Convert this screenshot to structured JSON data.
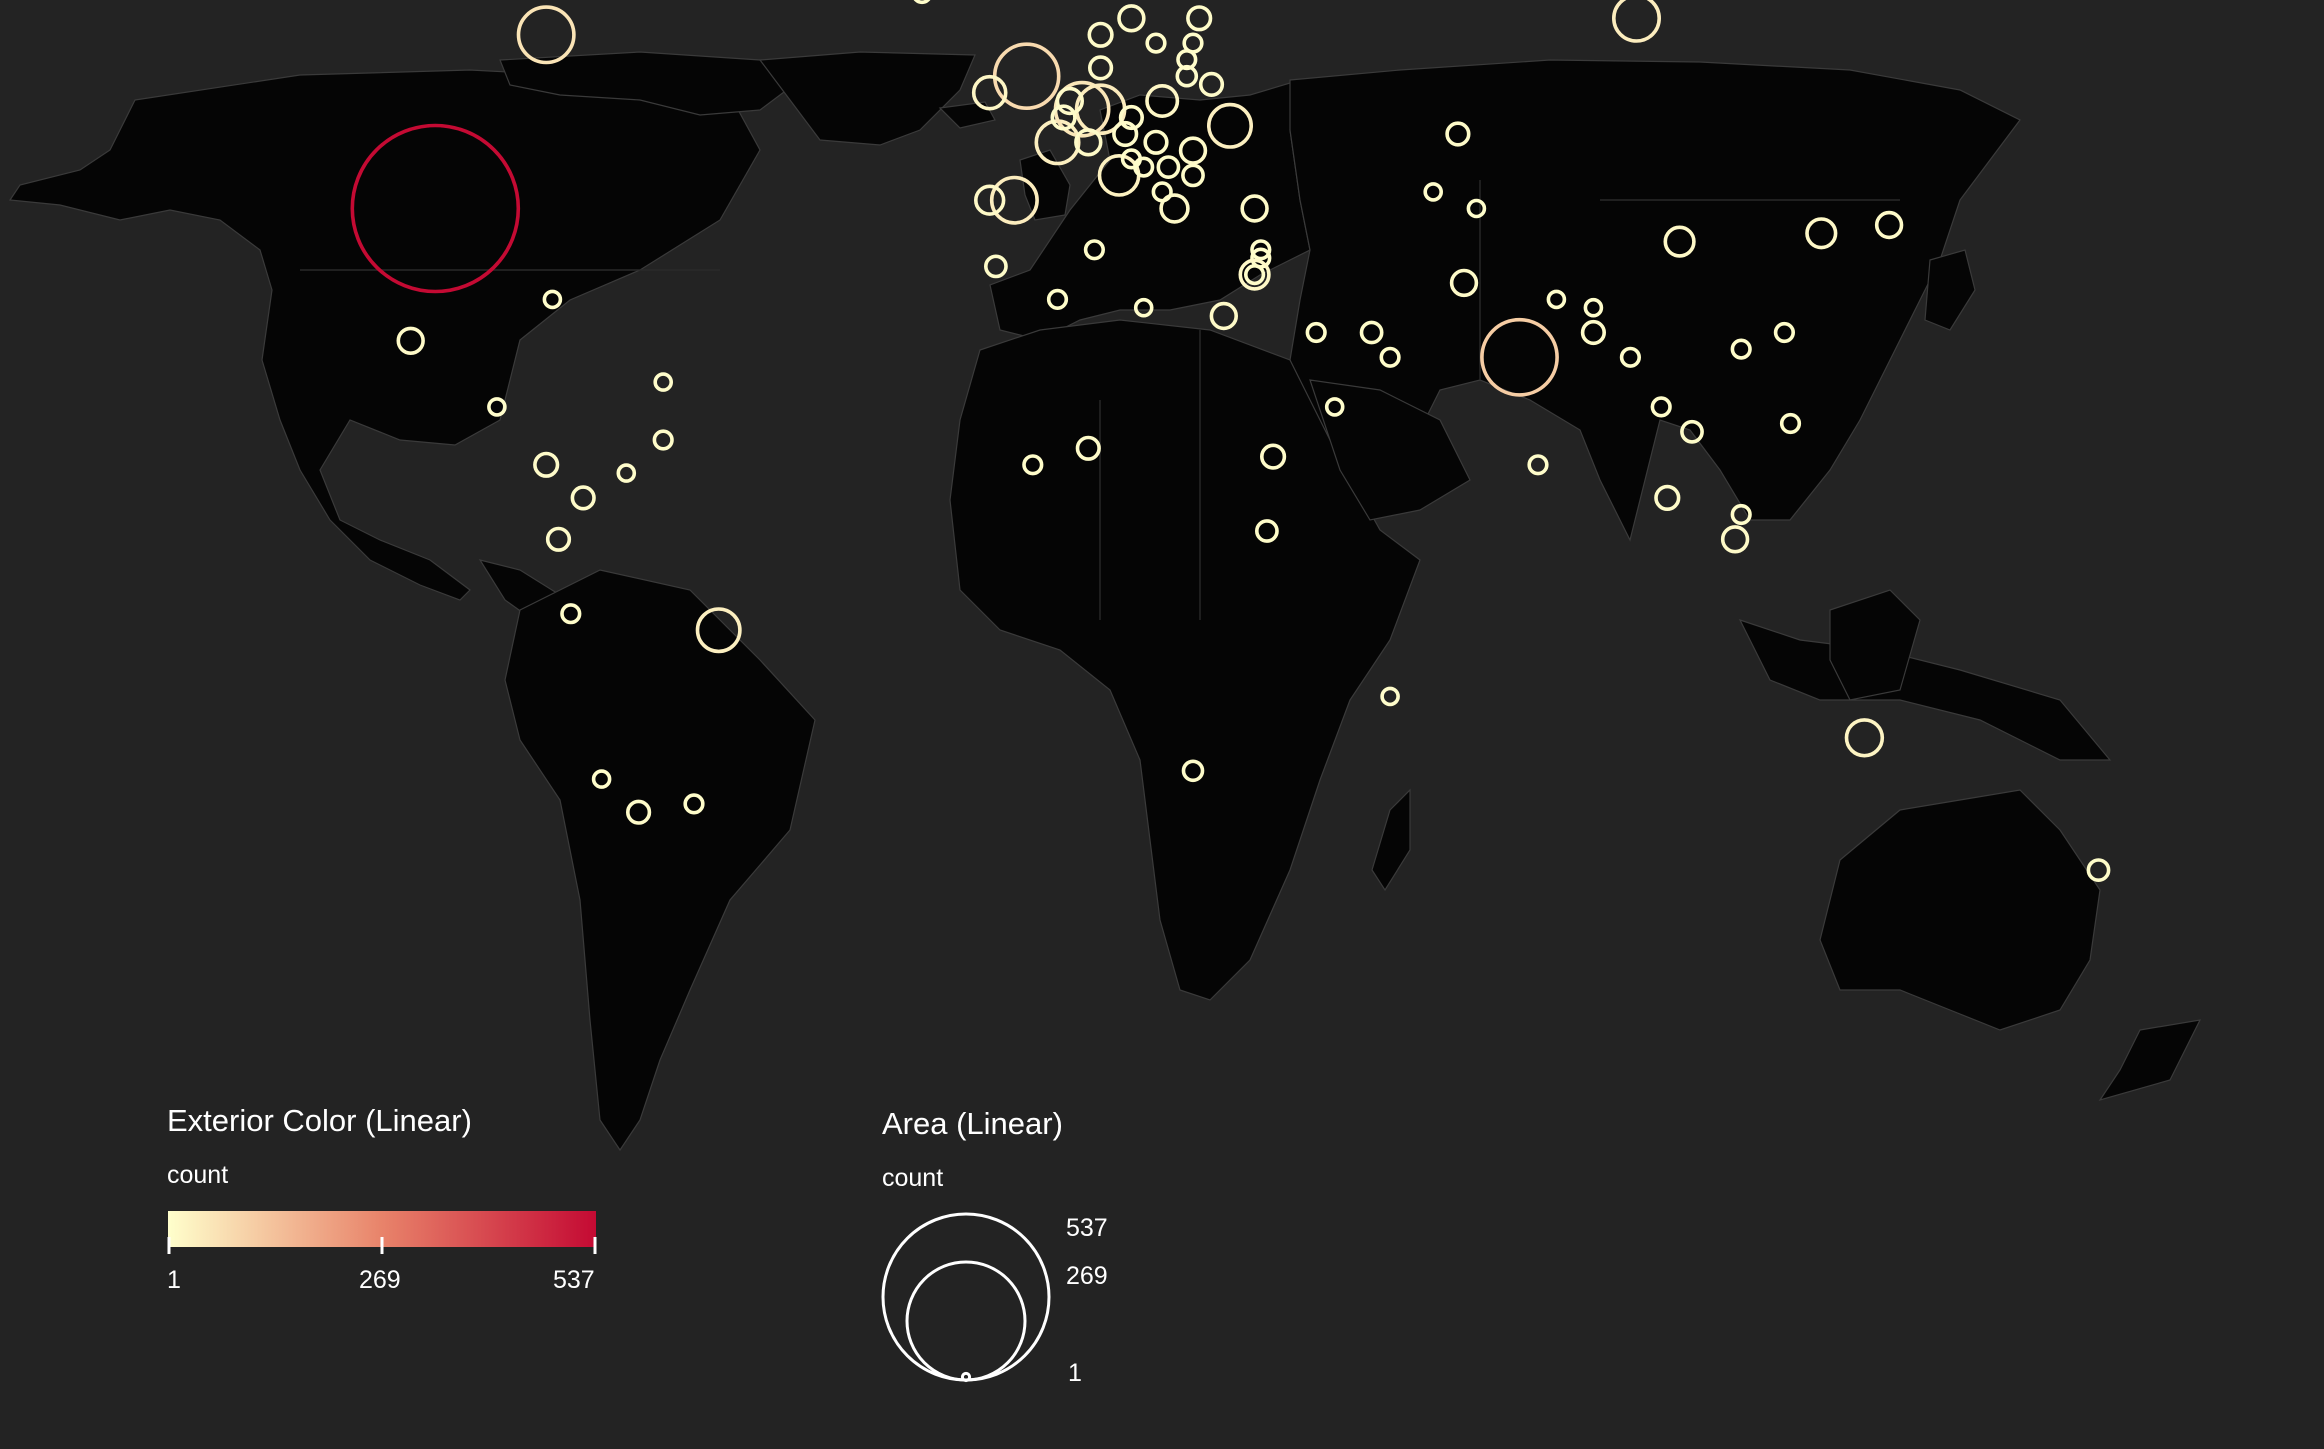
{
  "colors": {
    "background": "#232323",
    "land": "#050505",
    "scale_low": "#ffffcc",
    "scale_mid": "#e8836a",
    "scale_high": "#c40a33"
  },
  "legend_color": {
    "title": "Exterior Color (Linear)",
    "subtitle": "count",
    "ticks": [
      "1",
      "269",
      "537"
    ]
  },
  "legend_size": {
    "title": "Area (Linear)",
    "subtitle": "count",
    "ticks": [
      "537",
      "269",
      "1"
    ]
  },
  "chart_data": {
    "type": "bubble-map",
    "projection": "equirectangular",
    "value_range": [
      1,
      537
    ],
    "points": [
      {
        "lon": -98,
        "lat": 39,
        "value": 537
      },
      {
        "lon": -80,
        "lat": 60,
        "value": 60
      },
      {
        "lon": -2,
        "lat": 55,
        "value": 80
      },
      {
        "lon": 78,
        "lat": 21,
        "value": 110
      },
      {
        "lon": 97,
        "lat": 62,
        "value": 40
      },
      {
        "lon": -52,
        "lat": -12,
        "value": 35
      },
      {
        "lon": 134,
        "lat": -25,
        "value": 25
      },
      {
        "lon": 3,
        "lat": 47,
        "value": 35
      },
      {
        "lon": 7,
        "lat": 51,
        "value": 55
      },
      {
        "lon": 10,
        "lat": 51,
        "value": 45
      },
      {
        "lon": -4,
        "lat": 40,
        "value": 40
      },
      {
        "lon": 13,
        "lat": 43,
        "value": 30
      },
      {
        "lon": 31,
        "lat": 49,
        "value": 35
      },
      {
        "lon": -8,
        "lat": 53,
        "value": 20
      },
      {
        "lon": -8,
        "lat": 40,
        "value": 15
      },
      {
        "lon": 20,
        "lat": 52,
        "value": 18
      },
      {
        "lon": 15,
        "lat": 62,
        "value": 12
      },
      {
        "lon": 26,
        "lat": 62,
        "value": 10
      },
      {
        "lon": 10,
        "lat": 60,
        "value": 10
      },
      {
        "lon": 8,
        "lat": 47,
        "value": 12
      },
      {
        "lon": 14,
        "lat": 48,
        "value": 10
      },
      {
        "lon": 15,
        "lat": 50,
        "value": 9
      },
      {
        "lon": 5,
        "lat": 52,
        "value": 12
      },
      {
        "lon": 4,
        "lat": 50,
        "value": 10
      },
      {
        "lon": 10,
        "lat": 56,
        "value": 9
      },
      {
        "lon": 19,
        "lat": 47,
        "value": 9
      },
      {
        "lon": 25,
        "lat": 46,
        "value": 12
      },
      {
        "lon": 22,
        "lat": 39,
        "value": 14
      },
      {
        "lon": 25,
        "lat": 43,
        "value": 8
      },
      {
        "lon": 21,
        "lat": 44,
        "value": 8
      },
      {
        "lon": 17,
        "lat": 44,
        "value": 6
      },
      {
        "lon": 15,
        "lat": 45,
        "value": 6
      },
      {
        "lon": 20,
        "lat": 41,
        "value": 6
      },
      {
        "lon": 28,
        "lat": 54,
        "value": 9
      },
      {
        "lon": 24,
        "lat": 55,
        "value": 7
      },
      {
        "lon": 24,
        "lat": 57,
        "value": 6
      },
      {
        "lon": 25,
        "lat": 59,
        "value": 6
      },
      {
        "lon": 19,
        "lat": 59,
        "value": 6
      },
      {
        "lon": 35,
        "lat": 39,
        "value": 12
      },
      {
        "lon": -19,
        "lat": 65,
        "value": 6
      },
      {
        "lon": 68,
        "lat": 48,
        "value": 9
      },
      {
        "lon": 64,
        "lat": 41,
        "value": 5
      },
      {
        "lon": 71,
        "lat": 39,
        "value": 5
      },
      {
        "lon": 69,
        "lat": 30,
        "value": 12
      },
      {
        "lon": 104,
        "lat": 35,
        "value": 16
      },
      {
        "lon": 127,
        "lat": 36,
        "value": 16
      },
      {
        "lon": 138,
        "lat": 37,
        "value": 12
      },
      {
        "lon": 84,
        "lat": 28,
        "value": 5
      },
      {
        "lon": 90,
        "lat": 27,
        "value": 5
      },
      {
        "lon": 90,
        "lat": 24,
        "value": 9
      },
      {
        "lon": 96,
        "lat": 21,
        "value": 6
      },
      {
        "lon": 114,
        "lat": 22,
        "value": 6
      },
      {
        "lon": 121,
        "lat": 24,
        "value": 6
      },
      {
        "lon": 101,
        "lat": 15,
        "value": 6
      },
      {
        "lon": 106,
        "lat": 12,
        "value": 8
      },
      {
        "lon": 122,
        "lat": 13,
        "value": 6
      },
      {
        "lon": 81,
        "lat": 8,
        "value": 6
      },
      {
        "lon": 102,
        "lat": 4,
        "value": 10
      },
      {
        "lon": 114,
        "lat": 2,
        "value": 6
      },
      {
        "lon": 113,
        "lat": -1,
        "value": 12
      },
      {
        "lon": 35,
        "lat": 31,
        "value": 6
      },
      {
        "lon": 36,
        "lat": 33,
        "value": 6
      },
      {
        "lon": 36,
        "lat": 34,
        "value": 6
      },
      {
        "lon": 35,
        "lat": 31,
        "value": 16
      },
      {
        "lon": 30,
        "lat": 26,
        "value": 12
      },
      {
        "lon": 45,
        "lat": 24,
        "value": 6
      },
      {
        "lon": 54,
        "lat": 24,
        "value": 8
      },
      {
        "lon": 57,
        "lat": 21,
        "value": 6
      },
      {
        "lon": 48,
        "lat": 15,
        "value": 5
      },
      {
        "lon": -7,
        "lat": 32,
        "value": 8
      },
      {
        "lon": 3,
        "lat": 28,
        "value": 6
      },
      {
        "lon": 17,
        "lat": 27,
        "value": 5
      },
      {
        "lon": 9,
        "lat": 34,
        "value": 6
      },
      {
        "lon": -1,
        "lat": 8,
        "value": 6
      },
      {
        "lon": 8,
        "lat": 10,
        "value": 9
      },
      {
        "lon": 38,
        "lat": 9,
        "value": 10
      },
      {
        "lon": 37,
        "lat": 0,
        "value": 8
      },
      {
        "lon": 57,
        "lat": -20,
        "value": 5
      },
      {
        "lon": 25,
        "lat": -29,
        "value": 7
      },
      {
        "lon": -102,
        "lat": 23,
        "value": 12
      },
      {
        "lon": -79,
        "lat": 28,
        "value": 5
      },
      {
        "lon": -88,
        "lat": 15,
        "value": 5
      },
      {
        "lon": -80,
        "lat": 8,
        "value": 10
      },
      {
        "lon": -61,
        "lat": 18,
        "value": 5
      },
      {
        "lon": -61,
        "lat": 11,
        "value": 6
      },
      {
        "lon": -74,
        "lat": 4,
        "value": 9
      },
      {
        "lon": -67,
        "lat": 7,
        "value": 5
      },
      {
        "lon": -78,
        "lat": -1,
        "value": 9
      },
      {
        "lon": -76,
        "lat": -10,
        "value": 6
      },
      {
        "lon": -56,
        "lat": -33,
        "value": 6
      },
      {
        "lon": -65,
        "lat": -34,
        "value": 9
      },
      {
        "lon": -71,
        "lat": -30,
        "value": 5
      },
      {
        "lon": 172,
        "lat": -41,
        "value": 8
      }
    ]
  }
}
